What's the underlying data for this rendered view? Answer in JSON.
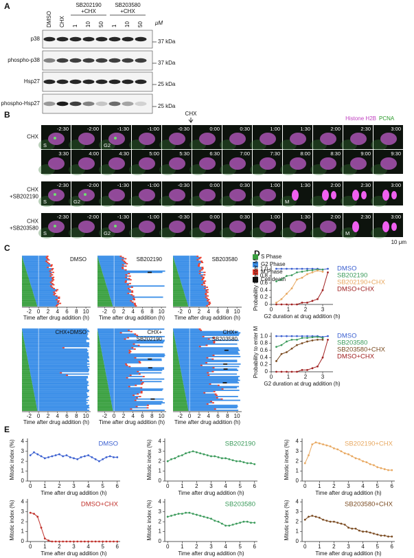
{
  "panels": {
    "A": {
      "letter": "A",
      "columns": [
        "DMSO",
        "CHX",
        "1",
        "10",
        "50",
        "1",
        "10",
        "50"
      ],
      "groups": [
        [
          "SB202190",
          "+CHX"
        ],
        [
          "SB203580",
          "+CHX"
        ]
      ],
      "unit": "μM",
      "rows": [
        {
          "label": "p38",
          "marker": "37 kDa"
        },
        {
          "label": "phospho-p38",
          "marker": "37 kDa"
        },
        {
          "label": "Hsp27",
          "marker": "25 kDa"
        },
        {
          "label": "phospho-Hsp27",
          "marker": "25 kDa"
        }
      ]
    },
    "B": {
      "letter": "B",
      "arrow_label": "CHX",
      "channels": [
        "Histone H2B",
        "PCNA"
      ],
      "scale_bar": "10 μm",
      "rows": [
        {
          "label": [
            "CHX"
          ],
          "times": [
            "-2:30",
            "-2:00",
            "-1:30",
            "-1:00",
            "-0:30",
            "0:00",
            "0:30",
            "1:00",
            "1:30",
            "2:00",
            "2:30",
            "3:00"
          ],
          "phases": [
            "S",
            null,
            "G2",
            null,
            null,
            null,
            null,
            null,
            null,
            null,
            null,
            null
          ]
        },
        {
          "label": [],
          "times": [
            "3:30",
            "4:00",
            "4:30",
            "5:00",
            "5:30",
            "6:30",
            "7:00",
            "7:30",
            "8:00",
            "8:30",
            "9:00",
            "9:30"
          ],
          "phases": [
            null,
            null,
            null,
            null,
            null,
            null,
            null,
            null,
            null,
            null,
            null,
            null
          ]
        },
        {
          "label": [
            "CHX",
            "+SB202190"
          ],
          "times": [
            "-2:30",
            "-2:00",
            "-1:30",
            "-1:00",
            "-0:30",
            "0:00",
            "0:30",
            "1:00",
            "1:30",
            "2:00",
            "2:30",
            "3:00"
          ],
          "phases": [
            "S",
            "G2",
            null,
            null,
            null,
            null,
            null,
            null,
            "M",
            null,
            null,
            null
          ]
        },
        {
          "label": [
            "CHX",
            "+SB203580"
          ],
          "times": [
            "-2:30",
            "-2:00",
            "-1:30",
            "-1:00",
            "-0:30",
            "0:00",
            "0:30",
            "1:00",
            "1:30",
            "2:00",
            "2:30",
            "3:00"
          ],
          "phases": [
            "S",
            null,
            "G2",
            null,
            null,
            null,
            null,
            null,
            null,
            null,
            "M",
            null
          ]
        }
      ]
    },
    "C": {
      "letter": "C",
      "titles": [
        [
          "DMSO"
        ],
        [
          "SB202190"
        ],
        [
          "SB203580"
        ],
        [
          "CHX+DMSO"
        ],
        [
          "CHX+",
          "SB202190"
        ],
        [
          "CHX+",
          "SB203580"
        ]
      ],
      "legend": [
        "S Phase",
        "G2 Phase",
        "M Phase",
        "Cell death"
      ],
      "xlim": [
        -3.5,
        11
      ],
      "xticks": [
        -2,
        0,
        2,
        4,
        6,
        8,
        10
      ],
      "xlabel": "Time after drug addition (h)"
    },
    "D": {
      "letter": "D"
    },
    "E": {
      "letter": "E"
    }
  },
  "chart_data": [
    {
      "type": "line",
      "xlabel": "G2 duration at drug addition (h)",
      "ylabel": "Probability to enter M",
      "xlim": [
        0,
        3.6
      ],
      "ylim": [
        0,
        1.1
      ],
      "xticks": [
        0,
        1,
        2,
        3
      ],
      "yticks": [
        0,
        0.2,
        0.4,
        0.6,
        0.8,
        {
          "value": 1,
          "label": "1.0"
        }
      ],
      "legend": "right",
      "series": [
        {
          "name": "DMSO",
          "color": "#3a5fd0",
          "x": [
            0.3,
            0.6,
            0.9,
            1.2,
            1.5,
            1.8,
            2.1,
            2.4,
            2.7,
            3.0,
            3.3
          ],
          "values": [
            1,
            1,
            1,
            1,
            1,
            1,
            1,
            1,
            1,
            0.98,
            1
          ]
        },
        {
          "name": "SB202190",
          "color": "#3a9a5a",
          "x": [
            0.3,
            0.6,
            0.9,
            1.2,
            1.5,
            1.8,
            2.1,
            2.4,
            2.7,
            3.0
          ],
          "values": [
            0.65,
            0.7,
            0.8,
            0.82,
            0.9,
            0.92,
            0.95,
            0.96,
            0.98,
            0.98
          ]
        },
        {
          "name": "SB202190+CHX",
          "color": "#e8a860",
          "x": [
            0.3,
            0.6,
            0.9,
            1.2,
            1.5,
            1.8,
            2.1,
            2.4,
            2.7,
            3.0
          ],
          "values": [
            0.05,
            0.15,
            0.3,
            0.45,
            0.7,
            0.75,
            0.85,
            0.9,
            0.95,
            0.92
          ]
        },
        {
          "name": "DMSO+CHX",
          "color": "#a02020",
          "x": [
            0.3,
            0.6,
            0.9,
            1.2,
            1.5,
            1.8,
            2.1,
            2.4,
            2.7,
            3.0,
            3.3
          ],
          "values": [
            0,
            0,
            0,
            0,
            0,
            0.05,
            0.05,
            0.1,
            0.15,
            0.4,
            0.9
          ]
        }
      ]
    },
    {
      "type": "line",
      "xlabel": "G2 duration at drug addition (h)",
      "ylabel": "Probability to enter M",
      "xlim": [
        0,
        3.6
      ],
      "ylim": [
        0,
        1.1
      ],
      "xticks": [
        0,
        1,
        2,
        3
      ],
      "yticks": [
        0,
        0.2,
        0.4,
        0.6,
        0.8,
        {
          "value": 1,
          "label": "1.0"
        }
      ],
      "legend": "right",
      "series": [
        {
          "name": "DMSO",
          "color": "#3a5fd0",
          "x": [
            0.3,
            0.6,
            0.9,
            1.2,
            1.5,
            1.8,
            2.1,
            2.4,
            2.7,
            3.0,
            3.3
          ],
          "values": [
            1,
            1,
            1,
            1,
            1,
            1,
            1,
            1,
            1,
            0.98,
            1
          ]
        },
        {
          "name": "SB203580",
          "color": "#3a9a5a",
          "x": [
            0.3,
            0.6,
            0.9,
            1.2,
            1.5,
            1.8,
            2.1,
            2.4,
            2.7,
            3.0
          ],
          "values": [
            0.7,
            0.75,
            0.85,
            0.9,
            0.9,
            0.95,
            0.95,
            0.97,
            0.98,
            0.95
          ]
        },
        {
          "name": "SB203580+CHX",
          "color": "#7a4a20",
          "x": [
            0.3,
            0.6,
            0.9,
            1.2,
            1.5,
            1.8,
            2.1,
            2.4,
            2.7,
            3.0
          ],
          "values": [
            0.3,
            0.5,
            0.55,
            0.65,
            0.75,
            0.8,
            0.85,
            0.88,
            0.9,
            0.9
          ]
        },
        {
          "name": "DMSO+CHX",
          "color": "#a02020",
          "x": [
            0.3,
            0.6,
            0.9,
            1.2,
            1.5,
            1.8,
            2.1,
            2.4,
            2.7,
            3.0,
            3.3
          ],
          "values": [
            0,
            0,
            0,
            0,
            0,
            0.05,
            0.05,
            0.1,
            0.15,
            0.4,
            0.9
          ]
        }
      ]
    },
    {
      "type": "line",
      "xlabel": "Time after drug addition (h)",
      "ylabel": "Mitotic index (%)",
      "xlim": [
        -0.2,
        6.2
      ],
      "ylim": [
        0,
        4.3
      ],
      "xticks": [
        0,
        1,
        2,
        3,
        4,
        5,
        6
      ],
      "yticks": [
        0,
        1,
        2,
        3,
        4
      ],
      "legend": "upper right",
      "series": [
        {
          "name": "DMSO",
          "color": "#3a5fd0",
          "x": [
            0,
            0.25,
            0.5,
            0.75,
            1,
            1.25,
            1.5,
            1.75,
            2,
            2.25,
            2.5,
            2.75,
            3,
            3.25,
            3.5,
            3.75,
            4,
            4.25,
            4.5,
            4.75,
            5,
            5.25,
            5.5,
            5.75,
            6
          ],
          "values": [
            2.6,
            2.9,
            2.7,
            2.5,
            2.3,
            2.4,
            2.5,
            2.6,
            2.7,
            2.5,
            2.6,
            2.4,
            2.3,
            2.2,
            2.4,
            2.5,
            2.6,
            2.4,
            2.2,
            2.0,
            2.2,
            2.4,
            2.5,
            2.4,
            2.4
          ]
        }
      ]
    },
    {
      "type": "line",
      "xlabel": "Time after drug addition (h)",
      "ylabel": "Mitotic index (%)",
      "xlim": [
        -0.2,
        6.2
      ],
      "ylim": [
        0,
        4.3
      ],
      "xticks": [
        0,
        1,
        2,
        3,
        4,
        5,
        6
      ],
      "yticks": [
        0,
        1,
        2,
        3,
        4
      ],
      "legend": "upper right",
      "series": [
        {
          "name": "SB202190",
          "color": "#3a9a5a",
          "x": [
            0,
            0.25,
            0.5,
            0.75,
            1,
            1.25,
            1.5,
            1.75,
            2,
            2.25,
            2.5,
            2.75,
            3,
            3.25,
            3.5,
            3.75,
            4,
            4.25,
            4.5,
            4.75,
            5,
            5.25,
            5.5,
            5.75,
            6
          ],
          "values": [
            2.0,
            2.2,
            2.3,
            2.5,
            2.6,
            2.8,
            2.9,
            3.0,
            2.9,
            2.8,
            2.7,
            2.6,
            2.5,
            2.5,
            2.4,
            2.3,
            2.3,
            2.2,
            2.1,
            2.0,
            2.0,
            1.9,
            1.8,
            1.8,
            1.7
          ]
        }
      ]
    },
    {
      "type": "line",
      "xlabel": "Time after drug addition (h)",
      "ylabel": "Mitotic index (%)",
      "xlim": [
        -0.2,
        6.2
      ],
      "ylim": [
        0,
        4.3
      ],
      "xticks": [
        0,
        1,
        2,
        3,
        4,
        5,
        6
      ],
      "yticks": [
        0,
        1,
        2,
        3,
        4
      ],
      "legend": "upper right",
      "series": [
        {
          "name": "SB202190+CHX",
          "color": "#e8a860",
          "x": [
            0,
            0.25,
            0.5,
            0.75,
            1,
            1.25,
            1.5,
            1.75,
            2,
            2.25,
            2.5,
            2.75,
            3,
            3.25,
            3.5,
            3.75,
            4,
            4.25,
            4.5,
            4.75,
            5,
            5.25,
            5.5,
            5.75,
            6
          ],
          "values": [
            1.8,
            2.6,
            3.7,
            3.9,
            3.8,
            3.7,
            3.6,
            3.5,
            3.3,
            3.2,
            3.0,
            2.8,
            2.7,
            2.5,
            2.3,
            2.2,
            2.0,
            1.9,
            1.7,
            1.6,
            1.4,
            1.3,
            1.2,
            1.1,
            1.1
          ]
        }
      ]
    },
    {
      "type": "line",
      "xlabel": "Time after drug addition (h)",
      "ylabel": "Mitotic index (%)",
      "xlim": [
        -0.2,
        6.2
      ],
      "ylim": [
        0,
        4.3
      ],
      "xticks": [
        0,
        1,
        2,
        3,
        4,
        5,
        6
      ],
      "yticks": [
        0,
        1,
        2,
        3,
        4
      ],
      "legend": "upper right",
      "series": [
        {
          "name": "DMSO+CHX",
          "color": "#c0302a",
          "x": [
            0,
            0.25,
            0.5,
            0.75,
            1,
            1.25,
            1.5,
            1.75,
            2,
            2.25,
            2.5,
            2.75,
            3,
            3.25,
            3.5,
            3.75,
            4,
            4.25,
            4.5,
            4.75,
            5,
            5.25,
            5.5,
            5.75,
            6
          ],
          "values": [
            2.9,
            2.8,
            2.5,
            1.4,
            0.3,
            0.1,
            0,
            0,
            0,
            0,
            0,
            0,
            0,
            0,
            0,
            0,
            0,
            0,
            0,
            0,
            0,
            0,
            0,
            0,
            0
          ]
        }
      ]
    },
    {
      "type": "line",
      "xlabel": "Time after drug addition (h)",
      "ylabel": "Mitotic index (%)",
      "xlim": [
        -0.2,
        6.2
      ],
      "ylim": [
        0,
        4.3
      ],
      "xticks": [
        0,
        1,
        2,
        3,
        4,
        5,
        6
      ],
      "yticks": [
        0,
        1,
        2,
        3,
        4
      ],
      "legend": "upper right",
      "series": [
        {
          "name": "SB203580",
          "color": "#3a9a5a",
          "x": [
            0,
            0.25,
            0.5,
            0.75,
            1,
            1.25,
            1.5,
            1.75,
            2,
            2.25,
            2.5,
            2.75,
            3,
            3.25,
            3.5,
            3.75,
            4,
            4.25,
            4.5,
            4.75,
            5,
            5.25,
            5.5,
            5.75,
            6
          ],
          "values": [
            2.5,
            2.6,
            2.7,
            2.8,
            2.8,
            2.9,
            2.9,
            2.8,
            2.7,
            2.6,
            2.5,
            2.4,
            2.3,
            2.1,
            2.0,
            1.8,
            1.6,
            1.6,
            1.7,
            1.8,
            1.9,
            2.0,
            2.0,
            1.9,
            1.9
          ]
        }
      ]
    },
    {
      "type": "line",
      "xlabel": "Time after drug addition (h)",
      "ylabel": "Mitotic index (%)",
      "xlim": [
        -0.2,
        6.2
      ],
      "ylim": [
        0,
        4.3
      ],
      "xticks": [
        0,
        1,
        2,
        3,
        4,
        5,
        6
      ],
      "yticks": [
        0,
        1,
        2,
        3,
        4
      ],
      "legend": "upper right",
      "series": [
        {
          "name": "SB203580+CHX",
          "color": "#7a4a20",
          "x": [
            0,
            0.25,
            0.5,
            0.75,
            1,
            1.25,
            1.5,
            1.75,
            2,
            2.25,
            2.5,
            2.75,
            3,
            3.25,
            3.5,
            3.75,
            4,
            4.25,
            4.5,
            4.75,
            5,
            5.25,
            5.5,
            5.75,
            6
          ],
          "values": [
            2.2,
            2.5,
            2.6,
            2.5,
            2.4,
            2.2,
            2.1,
            2.0,
            2.0,
            1.9,
            1.8,
            1.7,
            1.4,
            1.3,
            1.3,
            1.1,
            1.0,
            1.0,
            0.9,
            0.8,
            0.7,
            0.6,
            0.6,
            0.5,
            0.5
          ]
        }
      ]
    }
  ]
}
